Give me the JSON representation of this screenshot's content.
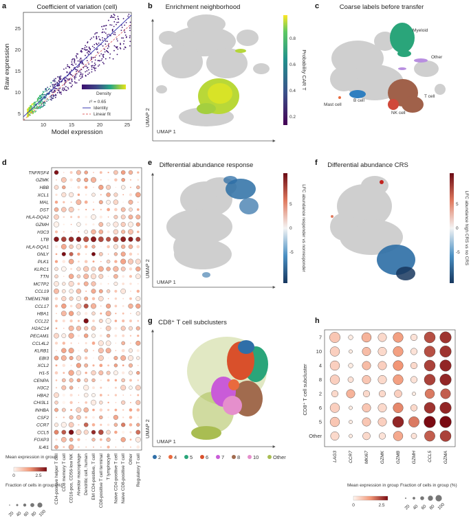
{
  "panels": {
    "a": {
      "letter": "a",
      "title": "Coefficient of variation (cell)",
      "xlabel": "Model expression",
      "ylabel": "Raw expression",
      "xticks": [
        "10",
        "15",
        "20",
        "25"
      ],
      "yticks": [
        "5",
        "10",
        "15",
        "20",
        "25"
      ],
      "colorbar_label": "Density",
      "r2": "r² = 0.65",
      "legend": [
        "Identity",
        "Linear fit"
      ]
    },
    "b": {
      "letter": "b",
      "title": "Enrichment neighborhood",
      "colorbar_label": "Probability CAR T",
      "colorbar_ticks": [
        "0.8",
        "0.6",
        "0.4",
        "0.2"
      ],
      "xlabel": "UMAP 1",
      "ylabel": "UMAP 2"
    },
    "c": {
      "letter": "c",
      "title": "Coarse labels before transfer",
      "labels": [
        "Myeloid",
        "Other",
        "T cell",
        "Mast cell",
        "B cell",
        "NK cell"
      ]
    },
    "d": {
      "letter": "d",
      "genes": [
        "TNFRSF4",
        "GZMK",
        "HBB",
        "XCL1",
        "MAL",
        "DST",
        "HLA-DQA2",
        "GZMH",
        "H3C3",
        "LTB",
        "HLA-DQA1",
        "GNLY",
        "PLK1",
        "KLRC1",
        "TTN",
        "MCTP2",
        "CCL19",
        "TMEM176B",
        "CCL17",
        "HBA1",
        "CCL22",
        "H2AC14",
        "PECAM1",
        "CCL4L2",
        "KLRB1",
        "EBI3",
        "XCL2",
        "H1-5",
        "CENPA",
        "H3C2",
        "HBA2",
        "CHI3L1",
        "INHBA",
        "CSF2",
        "CCR7",
        "CCL5",
        "FOXP3",
        "IL4I1"
      ],
      "celltypes": [
        "CD4-positive helper T cell",
        "CD8 memory T cell",
        "CD16-pos, CD56-low NK",
        "Alveolar macrophage",
        "Dendritic cell, human",
        "EM CD4-positive, T cell",
        "CD8-positive T cell terminal",
        "T lymphocyte",
        "Naive CD4-positive T cell",
        "Naive CD8-positive T cell",
        "Other",
        "Regulatory T cell"
      ],
      "legend_title": "Mean expression in group",
      "legend_ticks": [
        "0",
        "2.5"
      ],
      "size_title": "Fraction of cells in group (%)",
      "size_ticks": [
        "20",
        "40",
        "60",
        "80",
        "100"
      ]
    },
    "e": {
      "letter": "e",
      "title": "Differential abundance response",
      "colorbar_label": "LFC abundance responder vs nonresponder",
      "colorbar_ticks": [
        "5",
        "0",
        "-5"
      ],
      "xlabel": "UMAP 1",
      "ylabel": "UMAP 2"
    },
    "f": {
      "letter": "f",
      "title": "Differential abundance CRS",
      "colorbar_label": "LFC abundance high CRS vs no CRS",
      "colorbar_ticks": [
        "5",
        "0",
        "-5"
      ]
    },
    "g": {
      "letter": "g",
      "title": "CD8⁺ T cell subclusters",
      "xlabel": "UMAP 1",
      "ylabel": "UMAP 2",
      "legend": [
        {
          "label": "2",
          "color": "#2f6fa8"
        },
        {
          "label": "4",
          "color": "#e96a3e"
        },
        {
          "label": "5",
          "color": "#2aa57a"
        },
        {
          "label": "6",
          "color": "#d9502b"
        },
        {
          "label": "7",
          "color": "#c95bd8"
        },
        {
          "label": "8",
          "color": "#a16b4e"
        },
        {
          "label": "10",
          "color": "#e58fcc"
        },
        {
          "label": "Other",
          "color": "#a9bd52"
        }
      ]
    },
    "h": {
      "letter": "h",
      "ylabel": "CD8⁺ T cell subcluster",
      "rows": [
        "7",
        "10",
        "4",
        "8",
        "2",
        "6",
        "5",
        "Other"
      ],
      "genes": [
        "LAG3",
        "CCR7",
        "MKI67",
        "GZMK",
        "GZMB",
        "GZMH",
        "CCL5",
        "GZMA"
      ],
      "legend_title": "Mean expression in group",
      "legend_ticks": [
        "0",
        "2.5"
      ],
      "size_title": "Fraction of cells in group (%)",
      "size_ticks": [
        "20",
        "40",
        "60",
        "80",
        "100"
      ]
    }
  },
  "colors": {
    "umap_grey": "#cfcfcf",
    "car_t_green": "#b5d63a",
    "myeloid": "#2aa57a",
    "t_cell": "#a0614a",
    "b_cell": "#2f7fc0",
    "red_dot": "#c2231f",
    "blue_da": "#2c6ea5"
  }
}
